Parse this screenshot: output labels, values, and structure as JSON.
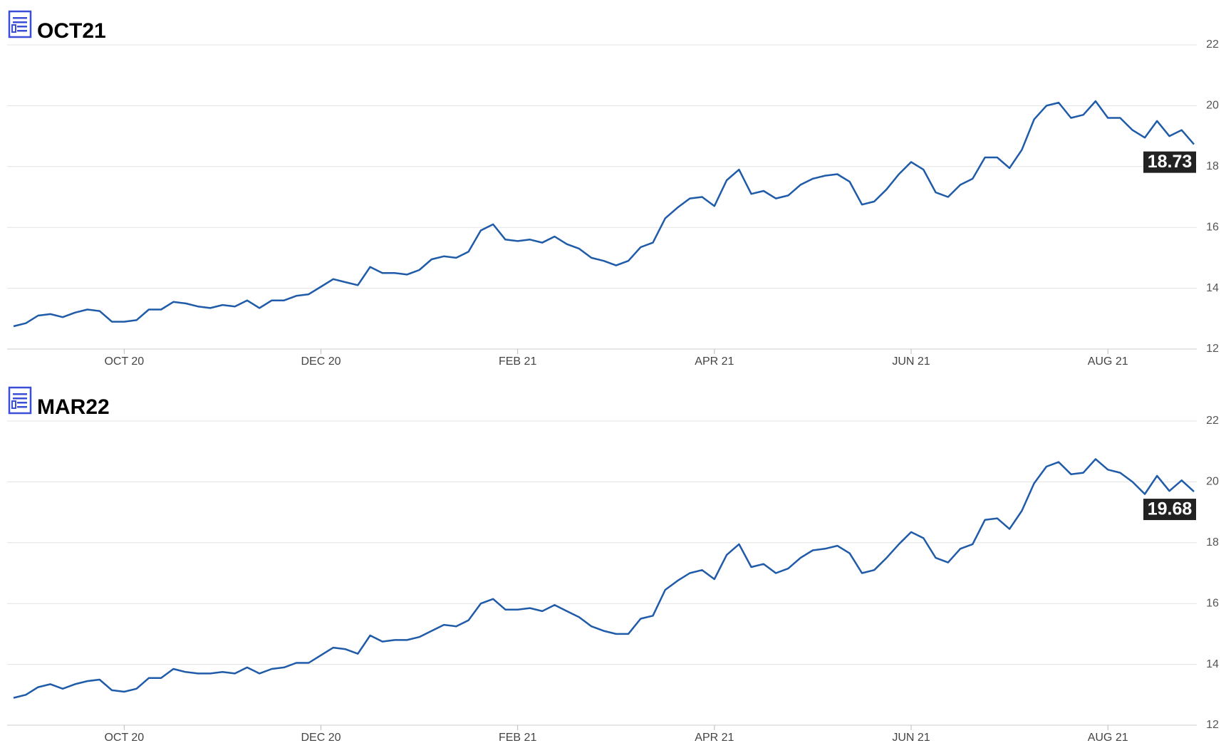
{
  "chart_data": [
    {
      "type": "line",
      "title": "OCT21",
      "color": "#1f5ba8",
      "categories": [
        null,
        null,
        null,
        null,
        null,
        null,
        null,
        null,
        null,
        "OCT 20",
        null,
        null,
        null,
        null,
        null,
        null,
        null,
        null,
        null,
        null,
        null,
        null,
        null,
        null,
        null,
        "DEC 20",
        null,
        null,
        null,
        null,
        null,
        null,
        null,
        null,
        null,
        null,
        null,
        null,
        null,
        null,
        null,
        "FEB 21",
        null,
        null,
        null,
        null,
        null,
        null,
        null,
        null,
        null,
        null,
        null,
        null,
        null,
        null,
        null,
        "APR 21",
        null,
        null,
        null,
        null,
        null,
        null,
        null,
        null,
        null,
        null,
        null,
        null,
        null,
        null,
        null,
        "JUN 21",
        null,
        null,
        null,
        null,
        null,
        null,
        null,
        null,
        null,
        null,
        null,
        null,
        null,
        null,
        null,
        "AUG 21",
        null,
        null,
        null,
        null,
        null,
        null,
        null
      ],
      "values": [
        12.75,
        12.85,
        13.1,
        13.15,
        13.05,
        13.2,
        13.3,
        13.25,
        12.9,
        12.9,
        12.95,
        13.3,
        13.3,
        13.55,
        13.5,
        13.4,
        13.35,
        13.45,
        13.4,
        13.6,
        13.35,
        13.6,
        13.6,
        13.75,
        13.8,
        14.05,
        14.3,
        14.2,
        14.1,
        14.7,
        14.5,
        14.5,
        14.45,
        14.6,
        14.95,
        15.05,
        15.0,
        15.2,
        15.9,
        16.1,
        15.6,
        15.55,
        15.6,
        15.5,
        15.7,
        15.45,
        15.3,
        15.0,
        14.9,
        14.75,
        14.9,
        15.35,
        15.5,
        16.3,
        16.65,
        16.95,
        17.0,
        16.7,
        17.55,
        17.9,
        17.1,
        17.2,
        16.95,
        17.05,
        17.4,
        17.6,
        17.7,
        17.75,
        17.5,
        16.75,
        16.85,
        17.25,
        17.75,
        18.15,
        17.9,
        17.15,
        17.0,
        17.4,
        17.6,
        18.3,
        18.3,
        17.95,
        18.55,
        19.55,
        20.0,
        20.1,
        19.6,
        19.7,
        20.15,
        19.6,
        19.6,
        19.2,
        18.95,
        19.5,
        19.0,
        19.2,
        18.73
      ],
      "ylim": [
        12,
        22
      ],
      "yticks": [
        12,
        14,
        16,
        18,
        20,
        22
      ],
      "grid": true
    },
    {
      "type": "line",
      "title": "MAR22",
      "color": "#1f5ba8",
      "categories": [
        null,
        null,
        null,
        null,
        null,
        null,
        null,
        null,
        null,
        "OCT 20",
        null,
        null,
        null,
        null,
        null,
        null,
        null,
        null,
        null,
        null,
        null,
        null,
        null,
        null,
        null,
        "DEC 20",
        null,
        null,
        null,
        null,
        null,
        null,
        null,
        null,
        null,
        null,
        null,
        null,
        null,
        null,
        null,
        "FEB 21",
        null,
        null,
        null,
        null,
        null,
        null,
        null,
        null,
        null,
        null,
        null,
        null,
        null,
        null,
        null,
        "APR 21",
        null,
        null,
        null,
        null,
        null,
        null,
        null,
        null,
        null,
        null,
        null,
        null,
        null,
        null,
        null,
        "JUN 21",
        null,
        null,
        null,
        null,
        null,
        null,
        null,
        null,
        null,
        null,
        null,
        null,
        null,
        null,
        null,
        "AUG 21",
        null,
        null,
        null,
        null,
        null,
        null,
        null
      ],
      "values": [
        12.9,
        13.0,
        13.25,
        13.35,
        13.2,
        13.35,
        13.45,
        13.5,
        13.15,
        13.1,
        13.2,
        13.55,
        13.55,
        13.85,
        13.75,
        13.7,
        13.7,
        13.75,
        13.7,
        13.9,
        13.7,
        13.85,
        13.9,
        14.05,
        14.05,
        14.3,
        14.55,
        14.5,
        14.35,
        14.95,
        14.75,
        14.8,
        14.8,
        14.9,
        15.1,
        15.3,
        15.25,
        15.45,
        16.0,
        16.15,
        15.8,
        15.8,
        15.85,
        15.75,
        15.95,
        15.75,
        15.55,
        15.25,
        15.1,
        15.0,
        15.0,
        15.5,
        15.6,
        16.45,
        16.75,
        17.0,
        17.1,
        16.8,
        17.6,
        17.95,
        17.2,
        17.3,
        17.0,
        17.15,
        17.5,
        17.75,
        17.8,
        17.9,
        17.65,
        17.0,
        17.1,
        17.5,
        17.95,
        18.35,
        18.15,
        17.5,
        17.35,
        17.8,
        17.95,
        18.75,
        18.8,
        18.45,
        19.05,
        19.95,
        20.5,
        20.65,
        20.25,
        20.3,
        20.75,
        20.4,
        20.3,
        20.0,
        19.6,
        20.2,
        19.7,
        20.05,
        19.68
      ],
      "ylim": [
        12,
        22
      ],
      "yticks": [
        12,
        14,
        16,
        18,
        20,
        22
      ],
      "grid": true
    }
  ]
}
